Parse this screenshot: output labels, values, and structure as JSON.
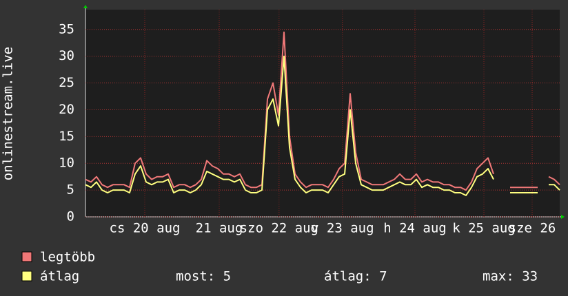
{
  "chart_data": {
    "type": "line",
    "ylabel": "onlinestream.live",
    "xlim": [
      0,
      86
    ],
    "xticks": [
      {
        "value": 10.75,
        "label": "cs 20 aug"
      },
      {
        "value": 24.25,
        "label": "21 aug"
      },
      {
        "value": 35.1,
        "label": "szo 22 aug"
      },
      {
        "value": 46.6,
        "label": "v 23 aug"
      },
      {
        "value": 59.75,
        "label": "h 24 aug"
      },
      {
        "value": 72.25,
        "label": "k 25 aug"
      },
      {
        "value": 81,
        "label": "sze 26"
      }
    ],
    "ylim": [
      0,
      38.7
    ],
    "yticks": [
      0,
      5,
      10,
      15,
      20,
      25,
      30,
      35
    ],
    "grid": true,
    "series": [
      {
        "name": "legtöbb",
        "color": "#f07878",
        "values": [
          7,
          6.5,
          7.5,
          6,
          5.5,
          6,
          6,
          6,
          5.5,
          10,
          11,
          8,
          7,
          7.5,
          7.5,
          8,
          5.5,
          6,
          6,
          5.5,
          6,
          7,
          10.5,
          9.5,
          9,
          8,
          8,
          7.5,
          8,
          6,
          5.5,
          5.5,
          6,
          22,
          25,
          19,
          34.5,
          15,
          8,
          6.5,
          5.5,
          6,
          6,
          6,
          5.5,
          7,
          9,
          10,
          23,
          12,
          7,
          6.5,
          6,
          6,
          6,
          6.5,
          7,
          8,
          7,
          7,
          8,
          6.5,
          7,
          6.5,
          6.5,
          6,
          6,
          5.5,
          5.5,
          5,
          6.5,
          9,
          10,
          11,
          8,
          null,
          null,
          5.5,
          5.5,
          5.5,
          5.5,
          5.5,
          5.5,
          null,
          7.5,
          7,
          6
        ]
      },
      {
        "name": "átlag",
        "color": "#ffff80",
        "values": [
          6,
          5.5,
          6.5,
          5,
          4.5,
          5,
          5,
          5,
          4.5,
          8,
          9.5,
          6.5,
          6,
          6.5,
          6.5,
          7,
          4.5,
          5,
          5,
          4.5,
          5,
          6,
          8.5,
          8,
          7.5,
          7,
          7,
          6.5,
          7,
          5,
          4.5,
          4.5,
          5,
          20,
          22,
          17,
          30,
          13,
          7,
          5.5,
          4.5,
          5,
          5,
          5,
          4.5,
          6,
          7.5,
          8,
          20,
          10,
          6,
          5.5,
          5,
          5,
          5,
          5.5,
          6,
          6.5,
          6,
          6,
          7,
          5.5,
          6,
          5.5,
          5.5,
          5,
          5,
          4.5,
          4.5,
          4,
          5.5,
          7.5,
          8,
          9,
          7,
          null,
          null,
          4.5,
          4.5,
          4.5,
          4.5,
          4.5,
          4.5,
          null,
          6,
          6,
          5
        ]
      }
    ],
    "stats": [
      "most: 5",
      "átlag: 7",
      "max: 33"
    ]
  }
}
